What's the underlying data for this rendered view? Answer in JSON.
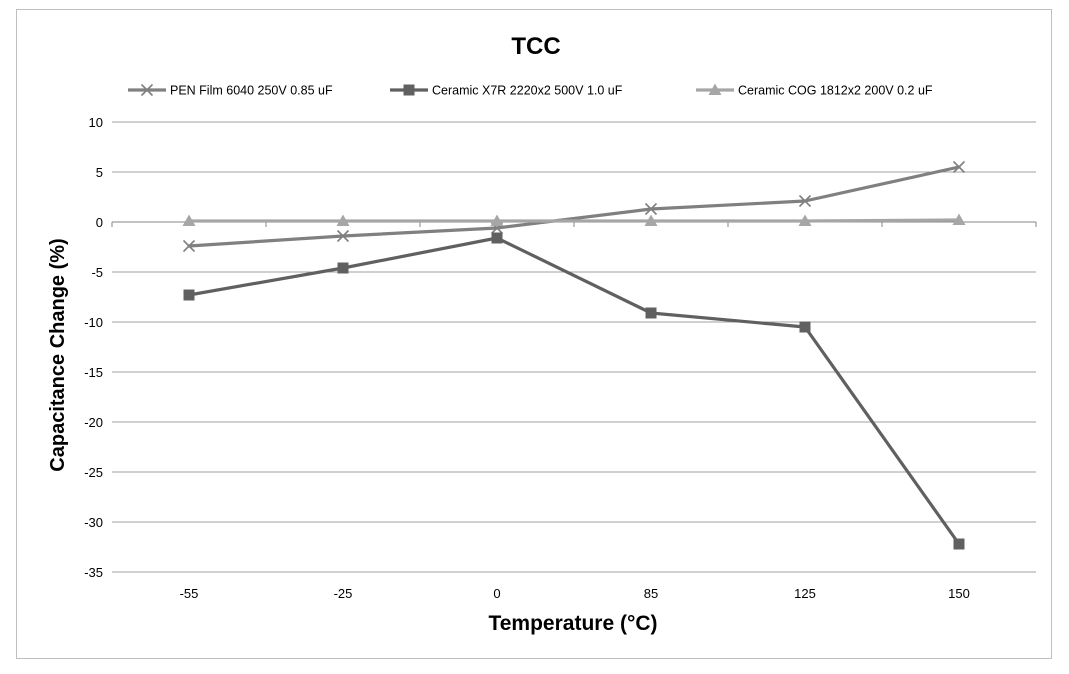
{
  "chart_data": {
    "type": "line",
    "title": "TCC",
    "xlabel": "Temperature (°C)",
    "ylabel": "Capacitance  Change (%)",
    "categories": [
      "-55",
      "-25",
      "0",
      "85",
      "125",
      "150"
    ],
    "ylim": [
      -35,
      10
    ],
    "yticks": [
      10,
      5,
      0,
      -5,
      -10,
      -15,
      -20,
      -25,
      -30,
      -35
    ],
    "grid": true,
    "legend_position": "top",
    "series": [
      {
        "name": "PEN Film 6040 250V 0.85 uF",
        "marker": "x",
        "color": "#808080",
        "values": [
          -2.4,
          -1.4,
          -0.6,
          1.3,
          2.1,
          5.5
        ]
      },
      {
        "name": "Ceramic X7R 2220x2 500V 1.0 uF",
        "marker": "square",
        "color": "#606060",
        "values": [
          -7.3,
          -4.6,
          -1.6,
          -9.1,
          -10.5,
          -32.2
        ]
      },
      {
        "name": "Ceramic COG 1812x2 200V 0.2 uF",
        "marker": "triangle",
        "color": "#a6a6a6",
        "values": [
          0.1,
          0.1,
          0.1,
          0.1,
          0.1,
          0.2
        ]
      }
    ]
  }
}
